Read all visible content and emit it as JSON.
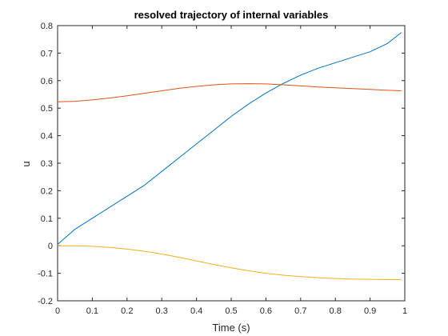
{
  "chart_data": {
    "type": "line",
    "title": "resolved trajectory of internal variables",
    "xlabel": "Time (s)",
    "ylabel": "u",
    "xlim": [
      0,
      1
    ],
    "ylim": [
      -0.2,
      0.8
    ],
    "xticks": [
      "0",
      "0.1",
      "0.2",
      "0.3",
      "0.4",
      "0.5",
      "0.6",
      "0.7",
      "0.8",
      "0.9",
      "1"
    ],
    "yticks": [
      "-0.2",
      "-0.1",
      "0",
      "0.1",
      "0.2",
      "0.3",
      "0.4",
      "0.5",
      "0.6",
      "0.7",
      "0.8"
    ],
    "grid": false,
    "legend": "none",
    "x": [
      0,
      0.05,
      0.1,
      0.15,
      0.2,
      0.25,
      0.3,
      0.35,
      0.4,
      0.45,
      0.5,
      0.55,
      0.6,
      0.65,
      0.7,
      0.75,
      0.8,
      0.85,
      0.9,
      0.95,
      0.99
    ],
    "series": [
      {
        "color": "#0072BD",
        "values": [
          0.005,
          0.06,
          0.1,
          0.14,
          0.18,
          0.22,
          0.27,
          0.32,
          0.37,
          0.42,
          0.47,
          0.515,
          0.555,
          0.59,
          0.62,
          0.645,
          0.665,
          0.685,
          0.705,
          0.735,
          0.775
        ]
      },
      {
        "color": "#D95319",
        "values": [
          0.523,
          0.525,
          0.53,
          0.537,
          0.545,
          0.554,
          0.563,
          0.572,
          0.579,
          0.585,
          0.588,
          0.589,
          0.588,
          0.585,
          0.581,
          0.577,
          0.574,
          0.571,
          0.568,
          0.565,
          0.563
        ]
      },
      {
        "color": "#EDB120",
        "values": [
          0.0,
          0.0,
          -0.002,
          -0.006,
          -0.012,
          -0.02,
          -0.03,
          -0.042,
          -0.055,
          -0.068,
          -0.08,
          -0.091,
          -0.1,
          -0.107,
          -0.112,
          -0.116,
          -0.119,
          -0.121,
          -0.122,
          -0.123,
          -0.123
        ]
      }
    ]
  }
}
